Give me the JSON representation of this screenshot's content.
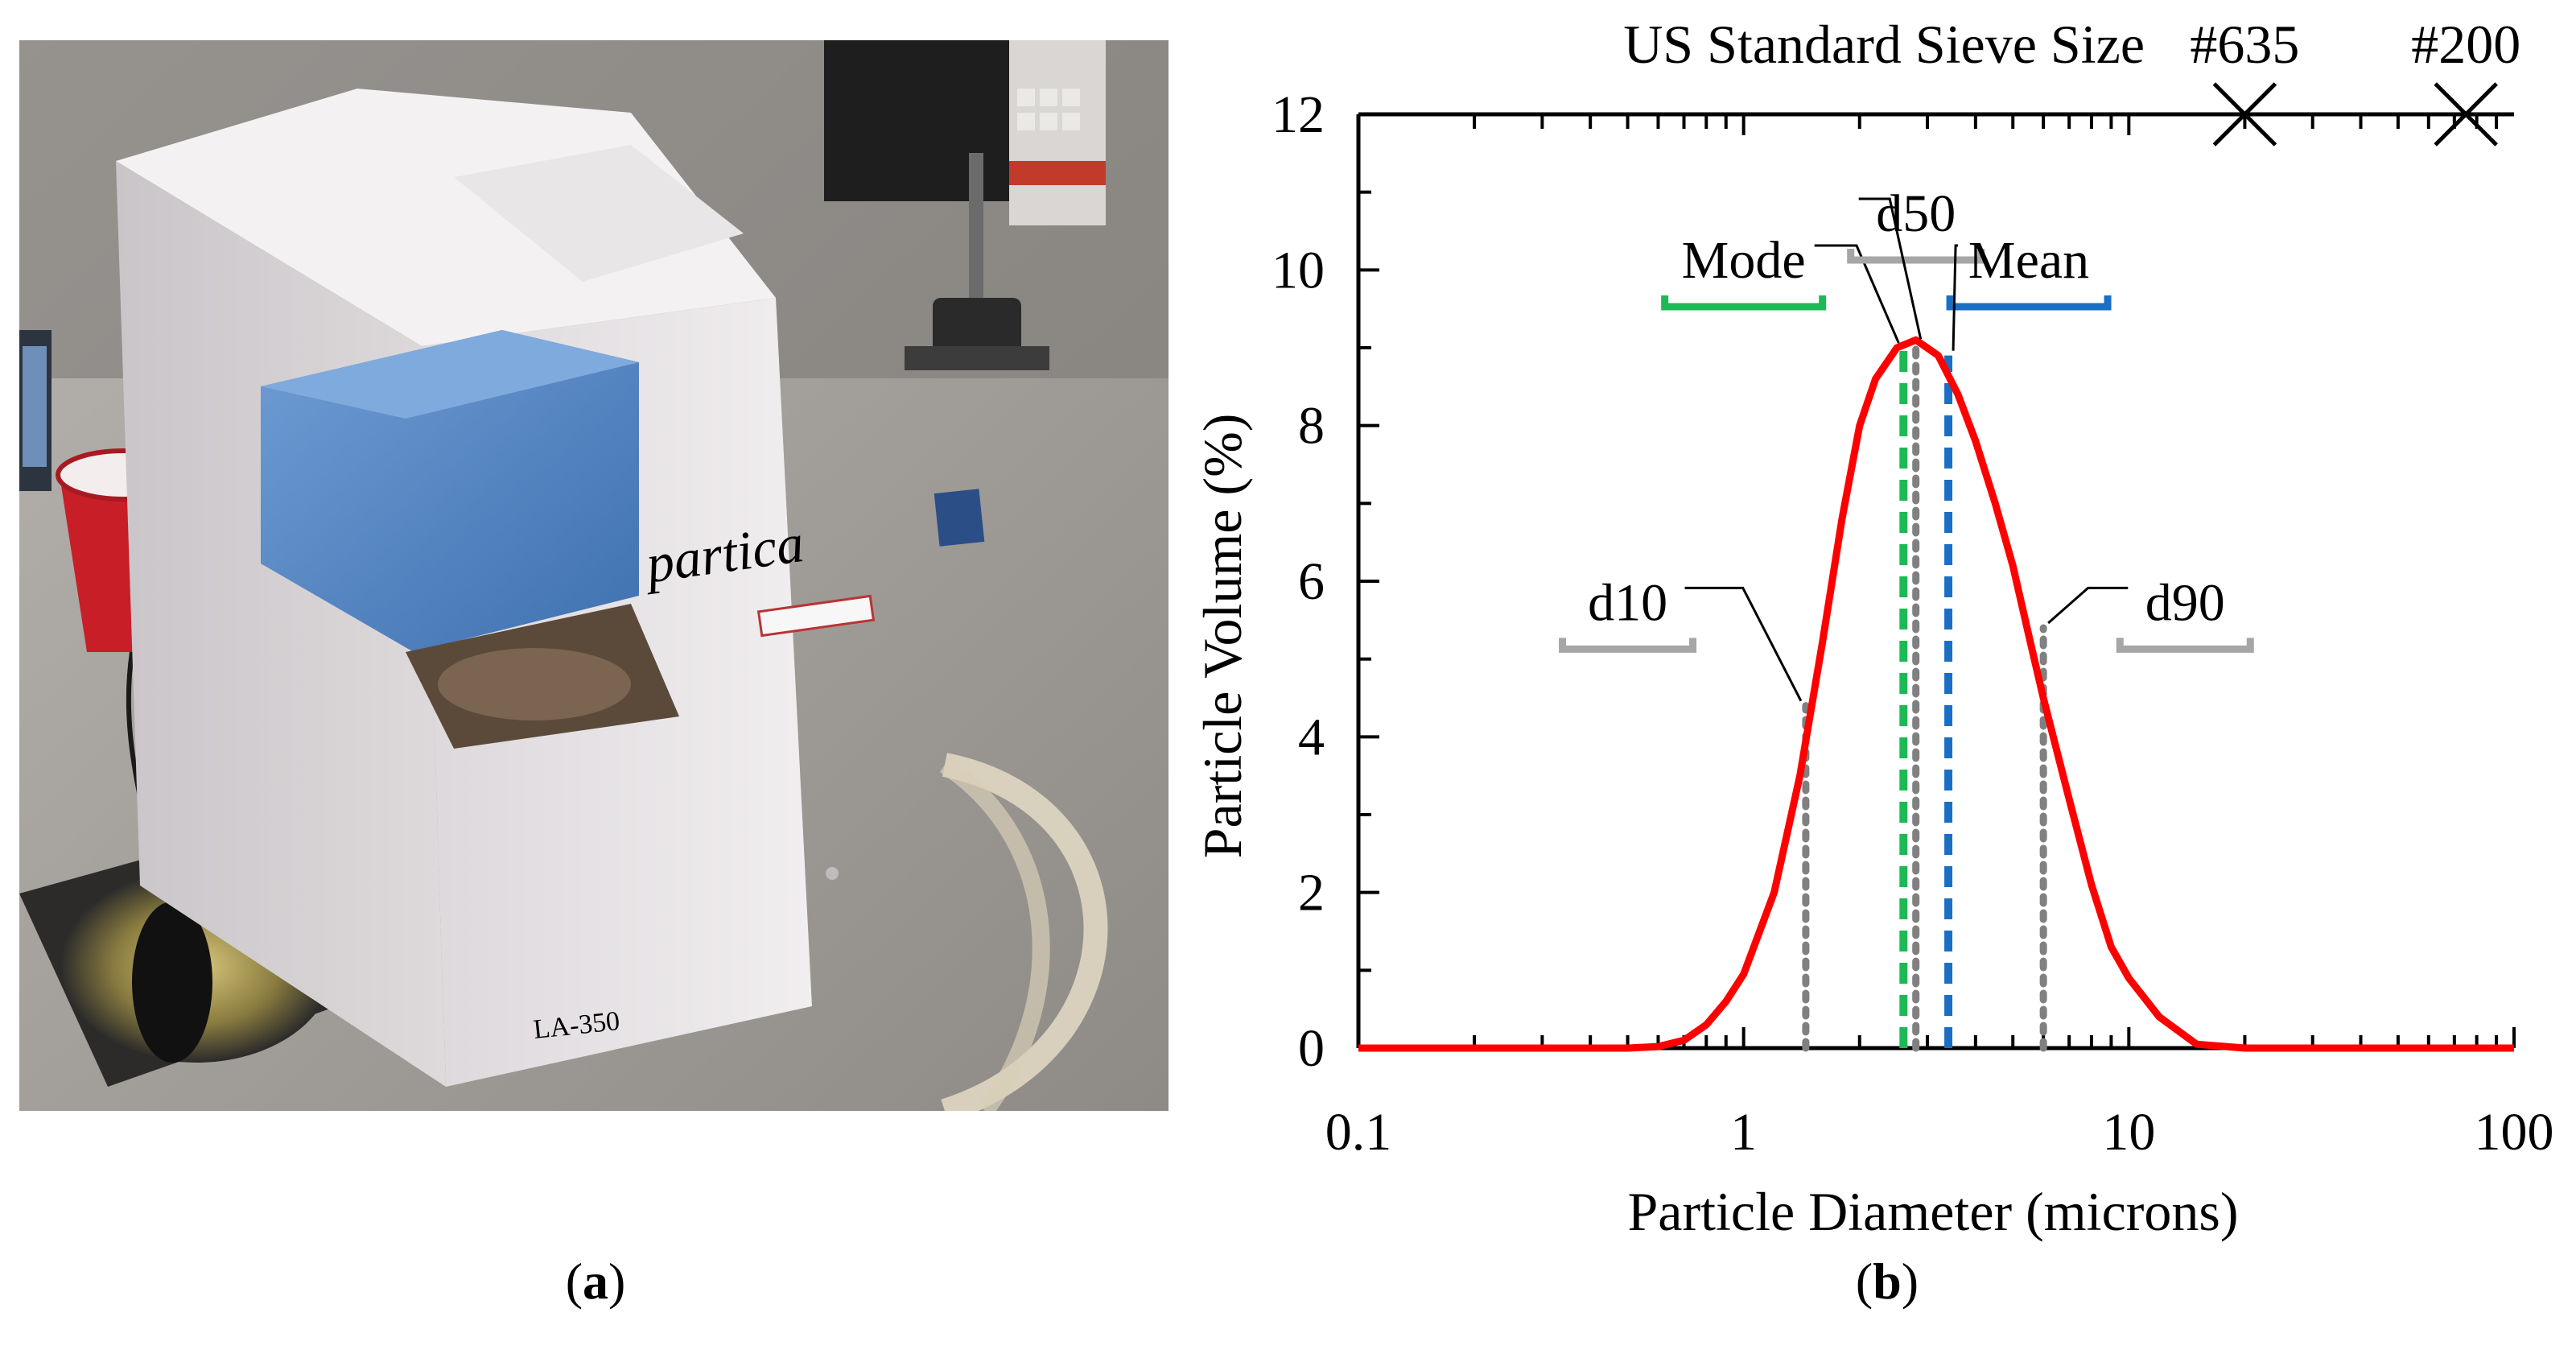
{
  "panels": {
    "a": {
      "caption_letter": "a",
      "caption_open": "(",
      "caption_close": ")"
    },
    "b": {
      "caption_letter": "b",
      "caption_open": "(",
      "caption_close": ")"
    }
  },
  "photo": {
    "instrument_brand": "partica",
    "instrument_model": "LA-350",
    "colors": {
      "body": "#e6e3e5",
      "lid": "#5a8cc8",
      "cup": "#c81e28",
      "table": "#a9a5a1"
    }
  },
  "chart_data": {
    "type": "line",
    "xscale": "log",
    "xlim": [
      0.1,
      100
    ],
    "ylim": [
      0,
      12
    ],
    "xlabel": "Particle Diameter (microns)",
    "ylabel": "Particle Volume (%)",
    "x_tick_labels": [
      "0.1",
      "1",
      "10",
      "100"
    ],
    "y_ticks": [
      0,
      2,
      4,
      6,
      8,
      10,
      12
    ],
    "top_axis_label": "US Standard Sieve Size",
    "sieve_marks": [
      {
        "label": "#635",
        "x": 20
      },
      {
        "label": "#200",
        "x": 75
      }
    ],
    "grid": false,
    "series": [
      {
        "color": "#ff0000",
        "x": [
          0.1,
          0.5,
          0.6,
          0.7,
          0.8,
          0.9,
          1.0,
          1.2,
          1.4,
          1.6,
          1.8,
          2.0,
          2.2,
          2.5,
          2.8,
          3.2,
          3.6,
          4.0,
          4.5,
          5.0,
          5.5,
          6.0,
          7.0,
          8.0,
          9.0,
          10.0,
          12.0,
          15.0,
          20.0,
          100.0
        ],
        "y": [
          0,
          0,
          0.02,
          0.1,
          0.3,
          0.6,
          0.95,
          2.0,
          3.5,
          5.2,
          6.8,
          8.0,
          8.6,
          9.0,
          9.1,
          8.9,
          8.4,
          7.8,
          7.0,
          6.2,
          5.3,
          4.5,
          3.2,
          2.1,
          1.3,
          0.9,
          0.4,
          0.05,
          0,
          0
        ]
      }
    ],
    "markers": [
      {
        "label": "d10",
        "x": 1.45,
        "y": 4.4,
        "style": "dotted",
        "color": "#808080",
        "label_x": 0.5,
        "label_y": 5.5,
        "label_underline_color": "#a6a6a6"
      },
      {
        "label": "Mode",
        "x": 2.6,
        "y": 9.0,
        "style": "dashed",
        "color": "#1db954",
        "label_x": 1.0,
        "label_y": 9.9,
        "label_underline_color": "#1db954"
      },
      {
        "label": "d50",
        "x": 2.8,
        "y": 9.05,
        "style": "dotted",
        "color": "#808080",
        "label_x": 2.8,
        "label_y": 10.5,
        "label_underline_color": "#a6a6a6"
      },
      {
        "label": "Mean",
        "x": 3.4,
        "y": 8.9,
        "style": "dashed",
        "color": "#1a6fc4",
        "label_x": 5.5,
        "label_y": 9.9,
        "label_underline_color": "#1a6fc4"
      },
      {
        "label": "d90",
        "x": 6.0,
        "y": 5.4,
        "style": "dotted",
        "color": "#808080",
        "label_x": 14.0,
        "label_y": 5.5,
        "label_underline_color": "#a6a6a6"
      }
    ]
  }
}
